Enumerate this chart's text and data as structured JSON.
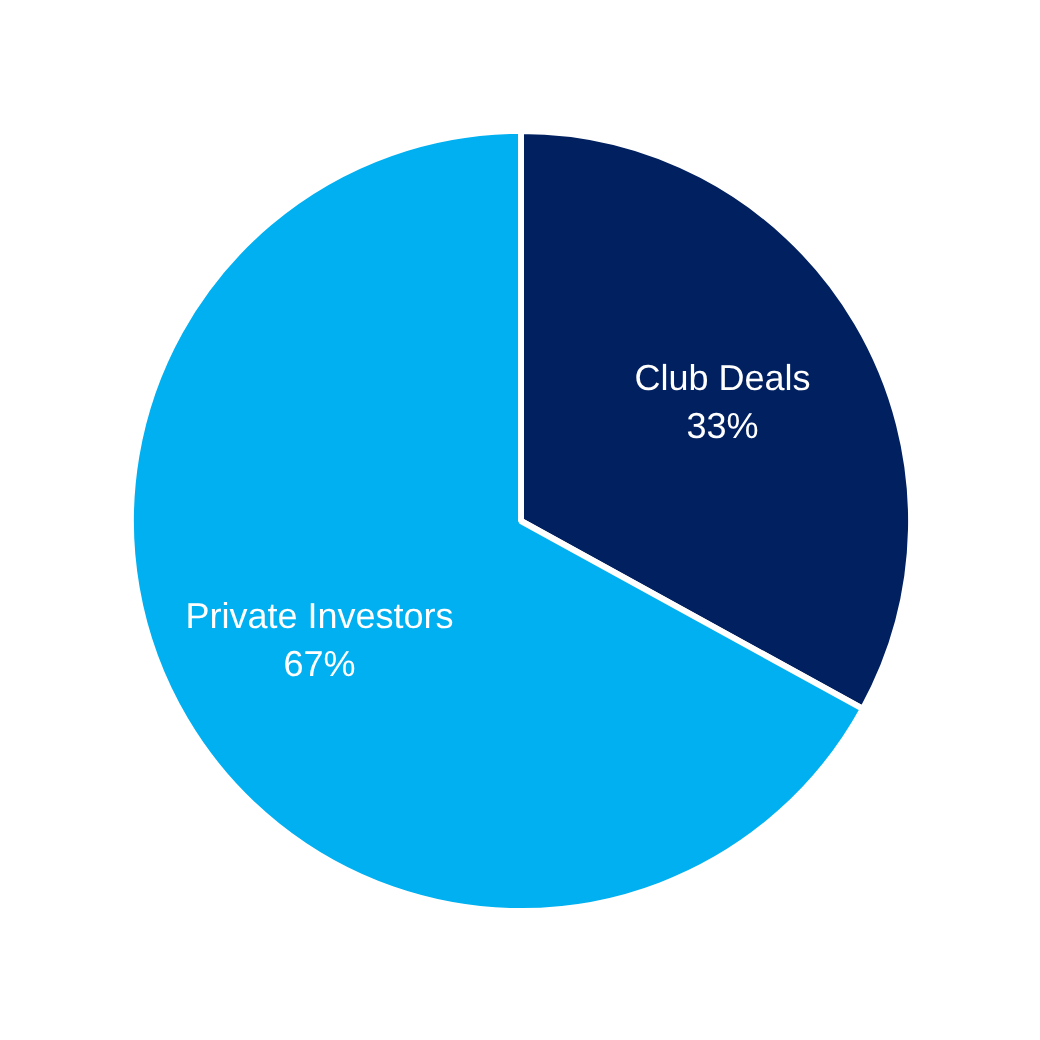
{
  "chart_data": {
    "type": "pie",
    "categories": [
      "Club Deals",
      "Private Investors"
    ],
    "values": [
      33,
      67
    ],
    "colors": [
      "#002060",
      "#00b0f0"
    ],
    "value_labels": [
      "33%",
      "67%"
    ]
  }
}
